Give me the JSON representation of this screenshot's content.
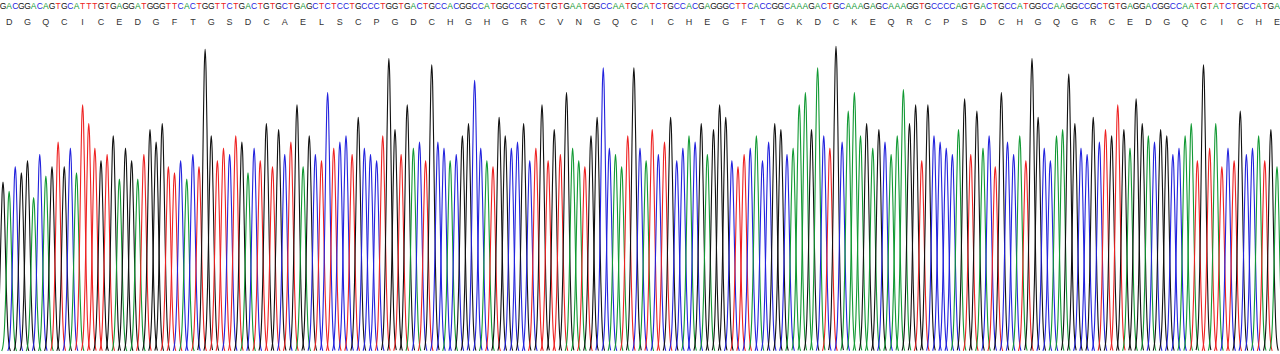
{
  "chart_data": {
    "type": "chromatogram",
    "categories": [
      "G",
      "A",
      "C",
      "G",
      "G",
      "A",
      "C",
      "A",
      "G",
      "T",
      "G",
      "C",
      "A",
      "T",
      "T",
      "T",
      "G",
      "T",
      "G",
      "A",
      "G",
      "G",
      "A",
      "T",
      "G",
      "G",
      "G",
      "T",
      "T",
      "C",
      "A",
      "C",
      "T",
      "G",
      "G",
      "T",
      "T",
      "C",
      "T",
      "G",
      "A",
      "C",
      "T",
      "G",
      "T",
      "G",
      "C",
      "T",
      "G",
      "A",
      "G",
      "C",
      "T",
      "C",
      "T",
      "C",
      "C",
      "T",
      "G",
      "C",
      "C",
      "C",
      "T",
      "G",
      "G",
      "T",
      "G",
      "A",
      "C",
      "T",
      "G",
      "C",
      "C",
      "A",
      "C",
      "G",
      "G",
      "C",
      "C",
      "A",
      "T",
      "G",
      "G",
      "C",
      "C",
      "G",
      "C",
      "T",
      "G",
      "T",
      "G",
      "T",
      "G",
      "A",
      "A",
      "T",
      "G",
      "G",
      "C",
      "C",
      "A",
      "A",
      "T",
      "G",
      "C",
      "A",
      "T",
      "C",
      "T",
      "G",
      "C",
      "C",
      "A",
      "C",
      "G",
      "A",
      "G",
      "G",
      "G",
      "C",
      "T",
      "T",
      "C",
      "A",
      "C",
      "C",
      "G",
      "G",
      "C",
      "A",
      "A",
      "A",
      "G",
      "A",
      "C",
      "T",
      "G",
      "C",
      "A",
      "A",
      "A",
      "G",
      "A",
      "G",
      "C",
      "A",
      "A",
      "A",
      "G",
      "G",
      "T",
      "G",
      "C",
      "C",
      "C",
      "C",
      "A",
      "G",
      "T",
      "G",
      "A",
      "C",
      "T",
      "G",
      "C",
      "C",
      "A",
      "T",
      "G",
      "G",
      "C",
      "C",
      "A",
      "A",
      "G",
      "G",
      "C",
      "C",
      "G",
      "C",
      "T",
      "G",
      "T",
      "G",
      "A",
      "G",
      "G",
      "A",
      "C",
      "G",
      "G",
      "C",
      "C",
      "A",
      "A",
      "T",
      "G",
      "T",
      "A",
      "T",
      "C",
      "T",
      "G",
      "C",
      "C",
      "A",
      "T",
      "G",
      "A"
    ],
    "values": [
      55,
      52,
      60,
      58,
      62,
      50,
      64,
      57,
      60,
      68,
      60,
      66,
      58,
      80,
      74,
      66,
      62,
      64,
      70,
      56,
      66,
      62,
      56,
      64,
      72,
      68,
      74,
      60,
      58,
      62,
      56,
      64,
      60,
      98,
      70,
      62,
      66,
      64,
      70,
      68,
      58,
      66,
      62,
      74,
      60,
      72,
      64,
      68,
      80,
      60,
      70,
      64,
      62,
      84,
      66,
      68,
      70,
      64,
      76,
      66,
      64,
      62,
      70,
      95,
      72,
      64,
      80,
      66,
      68,
      62,
      93,
      68,
      66,
      62,
      64,
      70,
      74,
      88,
      66,
      62,
      60,
      76,
      70,
      66,
      68,
      74,
      62,
      66,
      80,
      62,
      72,
      64,
      84,
      66,
      62,
      60,
      70,
      76,
      92,
      66,
      64,
      60,
      70,
      92,
      66,
      62,
      72,
      64,
      68,
      76,
      62,
      66,
      70,
      68,
      74,
      64,
      72,
      80,
      76,
      62,
      60,
      64,
      66,
      70,
      62,
      68,
      74,
      72,
      64,
      66,
      80,
      84,
      72,
      92,
      70,
      66,
      99,
      68,
      78,
      84,
      70,
      74,
      66,
      72,
      68,
      64,
      70,
      85,
      74,
      80,
      62,
      80,
      70,
      68,
      66,
      64,
      72,
      82,
      64,
      78,
      66,
      70,
      60,
      84,
      68,
      64,
      70,
      62,
      95,
      76,
      66,
      62,
      70,
      72,
      90,
      74,
      66,
      64,
      76,
      68,
      72,
      70,
      80,
      72,
      66,
      82,
      74,
      70,
      68,
      72,
      70,
      64,
      66,
      70,
      74,
      62,
      93,
      66,
      74,
      60,
      66,
      62,
      78,
      64,
      66,
      70,
      62,
      72,
      60
    ],
    "colors": [
      "#111",
      "#193",
      "#22d",
      "#111",
      "#111",
      "#193",
      "#22d",
      "#193",
      "#111",
      "#e22",
      "#111",
      "#22d",
      "#193",
      "#e22",
      "#e22",
      "#e22",
      "#111",
      "#e22",
      "#111",
      "#193",
      "#111",
      "#111",
      "#193",
      "#e22",
      "#111",
      "#111",
      "#111",
      "#e22",
      "#e22",
      "#22d",
      "#193",
      "#22d",
      "#e22",
      "#111",
      "#111",
      "#e22",
      "#e22",
      "#22d",
      "#e22",
      "#111",
      "#193",
      "#22d",
      "#e22",
      "#111",
      "#e22",
      "#111",
      "#22d",
      "#e22",
      "#111",
      "#193",
      "#111",
      "#22d",
      "#e22",
      "#22d",
      "#e22",
      "#22d",
      "#22d",
      "#e22",
      "#111",
      "#22d",
      "#22d",
      "#22d",
      "#e22",
      "#111",
      "#111",
      "#e22",
      "#111",
      "#193",
      "#22d",
      "#e22",
      "#111",
      "#22d",
      "#22d",
      "#193",
      "#22d",
      "#111",
      "#111",
      "#22d",
      "#22d",
      "#193",
      "#e22",
      "#111",
      "#111",
      "#22d",
      "#22d",
      "#111",
      "#22d",
      "#e22",
      "#111",
      "#e22",
      "#111",
      "#e22",
      "#111",
      "#193",
      "#193",
      "#e22",
      "#111",
      "#111",
      "#22d",
      "#22d",
      "#193",
      "#193",
      "#e22",
      "#111",
      "#22d",
      "#193",
      "#e22",
      "#22d",
      "#e22",
      "#111",
      "#22d",
      "#22d",
      "#193",
      "#22d",
      "#111",
      "#193",
      "#111",
      "#111",
      "#111",
      "#22d",
      "#e22",
      "#e22",
      "#22d",
      "#193",
      "#22d",
      "#22d",
      "#111",
      "#111",
      "#22d",
      "#193",
      "#193",
      "#193",
      "#111",
      "#193",
      "#22d",
      "#e22",
      "#111",
      "#22d",
      "#193",
      "#193",
      "#193",
      "#111",
      "#193",
      "#111",
      "#22d",
      "#193",
      "#193",
      "#193",
      "#111",
      "#111",
      "#e22",
      "#111",
      "#22d",
      "#22d",
      "#22d",
      "#22d",
      "#193",
      "#111",
      "#e22",
      "#111",
      "#193",
      "#22d",
      "#e22",
      "#111",
      "#22d",
      "#22d",
      "#193",
      "#e22",
      "#111",
      "#111",
      "#22d",
      "#22d",
      "#193",
      "#193",
      "#111",
      "#111",
      "#22d",
      "#22d",
      "#111",
      "#22d",
      "#e22",
      "#111",
      "#e22",
      "#111",
      "#193",
      "#111",
      "#111",
      "#193",
      "#22d",
      "#111",
      "#111",
      "#22d",
      "#22d",
      "#193",
      "#193",
      "#e22",
      "#111",
      "#e22",
      "#193",
      "#e22",
      "#22d",
      "#e22",
      "#111",
      "#22d",
      "#22d",
      "#193",
      "#e22",
      "#111",
      "#193"
    ],
    "translation": [
      "D",
      "G",
      "Q",
      "C",
      "I",
      "C",
      "E",
      "D",
      "G",
      "F",
      "T",
      "G",
      "S",
      "D",
      "C",
      "A",
      "E",
      "L",
      "S",
      "C",
      "P",
      "G",
      "D",
      "C",
      "H",
      "G",
      "H",
      "G",
      "R",
      "C",
      "V",
      "N",
      "G",
      "Q",
      "C",
      "I",
      "C",
      "H",
      "E",
      "G",
      "F",
      "T",
      "G",
      "K",
      "D",
      "C",
      "K",
      "E",
      "Q",
      "R",
      "C",
      "P",
      "S",
      "D",
      "C",
      "H",
      "G",
      "Q",
      "G",
      "R",
      "C",
      "E",
      "D",
      "G",
      "Q",
      "C",
      "I",
      "C",
      "H",
      "E"
    ],
    "ylim": [
      0,
      100
    ],
    "tick_labels": false
  }
}
